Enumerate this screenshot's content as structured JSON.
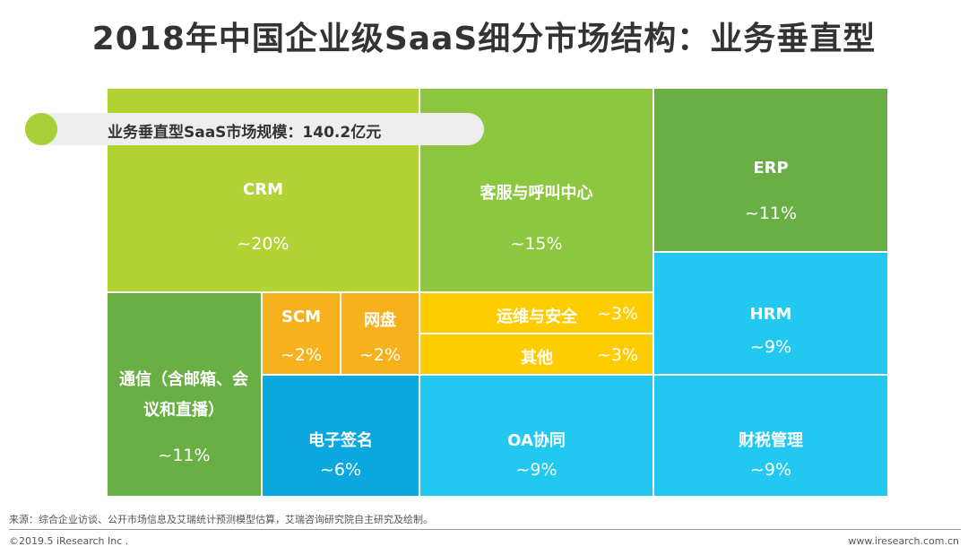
{
  "title": "2018年中国企业级SaaS细分市场结构：业务垂直型",
  "chart_data": {
    "type": "treemap",
    "title": "2018年中国企业级SaaS细分市场结构：业务垂直型",
    "annotation": "业务垂直型SaaS市场规模：140.2亿元",
    "items": [
      {
        "name": "CRM",
        "label": "~20%",
        "value": 20,
        "color": "#b3d334"
      },
      {
        "name": "客服与呼叫中心",
        "label": "~15%",
        "value": 15,
        "color": "#8dc63f"
      },
      {
        "name": "ERP",
        "label": "~11%",
        "value": 11,
        "color": "#6aaf44"
      },
      {
        "name": "HRM",
        "label": "~9%",
        "value": 9,
        "color": "#22c8f0"
      },
      {
        "name": "财税管理",
        "label": "~9%",
        "value": 9,
        "color": "#22c8f0"
      },
      {
        "name": "通信（含邮箱、会议和直播）",
        "label": "~11%",
        "value": 11,
        "color": "#6aaf44"
      },
      {
        "name": "SCM",
        "label": "~2%",
        "value": 2,
        "color": "#f7b11c"
      },
      {
        "name": "网盘",
        "label": "~2%",
        "value": 2,
        "color": "#f7b11c"
      },
      {
        "name": "电子签名",
        "label": "~6%",
        "value": 6,
        "color": "#0ba8e0"
      },
      {
        "name": "运维与安全",
        "label": "~3%",
        "value": 3,
        "color": "#ffcc00"
      },
      {
        "name": "其他",
        "label": "~3%",
        "value": 3,
        "color": "#ffcc00"
      },
      {
        "name": "OA协同",
        "label": "~9%",
        "value": 9,
        "color": "#22c8f0"
      }
    ]
  },
  "footer": {
    "source": "来源：综合企业访谈、公开市场信息及艾瑞统计预测模型估算，艾瑞咨询研究院自主研究及绘制。",
    "copyright": "©2019.5 iResearch Inc .",
    "website": "www.iresearch.com.cn"
  }
}
